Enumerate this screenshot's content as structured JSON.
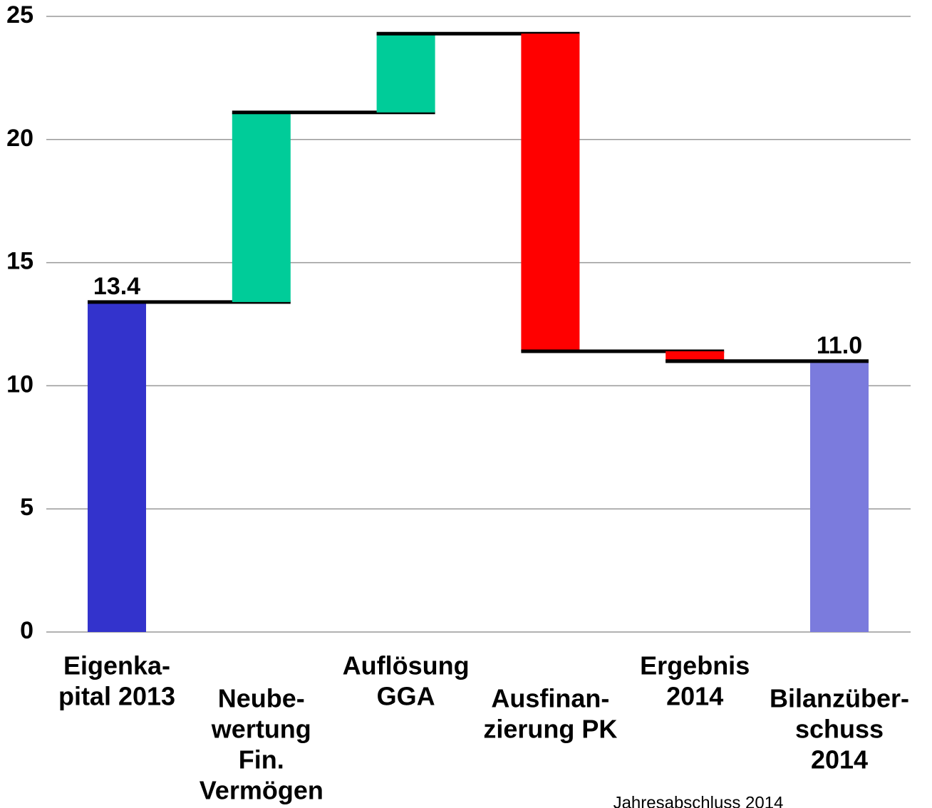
{
  "chart_data": {
    "type": "waterfall",
    "categories": [
      [
        "Eigenka-",
        "pital 2013"
      ],
      [
        "Neube-",
        "wertung",
        "Fin.",
        "Vermögen"
      ],
      [
        "Auflösung",
        "GGA"
      ],
      [
        "Ausfinan-",
        "zierung PK"
      ],
      [
        "Ergebnis",
        "2014"
      ],
      [
        "Bilanzüber-",
        "schuss",
        "2014"
      ]
    ],
    "values": [
      13.4,
      7.7,
      3.2,
      -12.9,
      -0.4,
      11.0
    ],
    "value_labels": [
      "13.4",
      null,
      null,
      null,
      null,
      "11.0"
    ],
    "measure": [
      "total",
      "relative",
      "relative",
      "relative",
      "relative",
      "total"
    ],
    "colors": [
      "#3333cc",
      "#00cc99",
      "#00cc99",
      "#ff0000",
      "#ff0000",
      "#7b7bdd"
    ],
    "ylim": [
      0,
      25
    ],
    "yticks": [
      0,
      5,
      10,
      15,
      20,
      25
    ],
    "grid": true,
    "footnote": "Jahresabschluss 2014"
  }
}
